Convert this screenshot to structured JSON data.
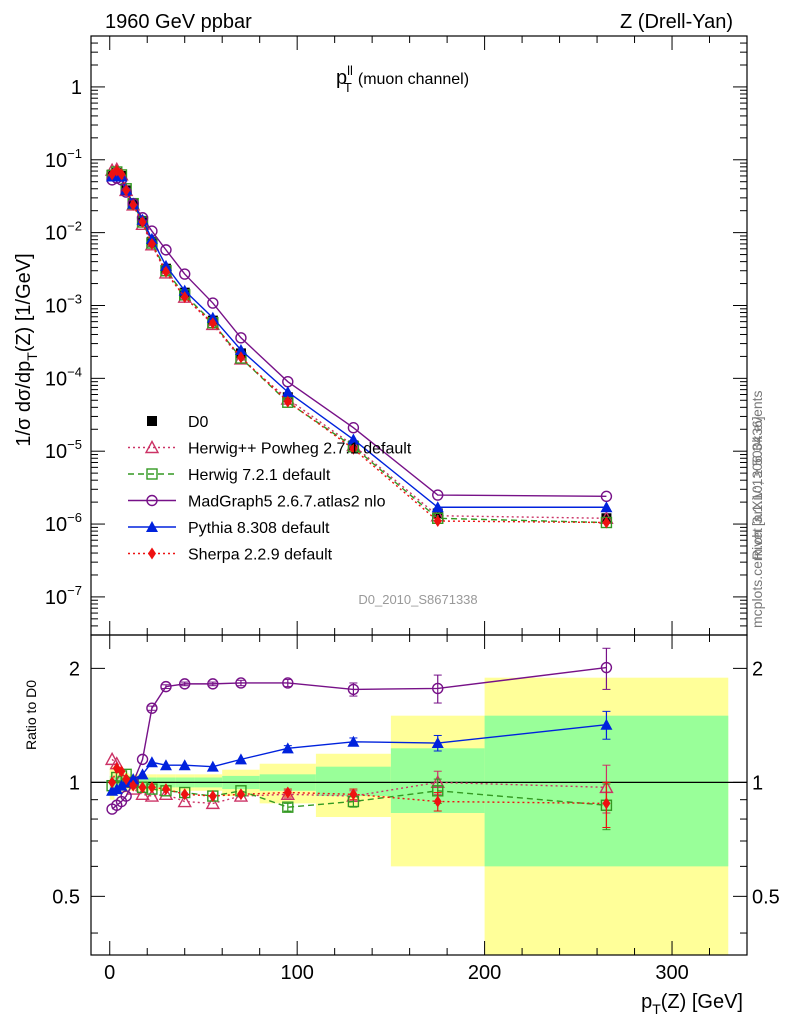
{
  "header": {
    "left": "1960 GeV ppbar",
    "right": "Z (Drell-Yan)"
  },
  "side_labels": {
    "rivet": "Rivet 3.1.10, ≥ 500k events",
    "mcplots": "mcplots.cern.ch [arXiv:1306.3436]"
  },
  "chart_data": [
    {
      "type": "line",
      "title_main": "p",
      "title_sub": "T",
      "title_sup": "ll",
      "title_tail": "(muon channel)",
      "watermark": "D0_2010_S8671338",
      "ylabel": "1/σ  dσ/dp_T(Z) [1/GeV]",
      "ylabel_parts": [
        "1/σ  dσ/dp",
        "T",
        "(Z) [1/GeV]"
      ],
      "yscale": "log",
      "xlim": [
        -10,
        340
      ],
      "ylim": [
        3e-08,
        5
      ],
      "ytick_labels": [
        {
          "v": 1,
          "base": "1",
          "exp": ""
        },
        {
          "v": 0.1,
          "base": "10",
          "exp": "−1"
        },
        {
          "v": 0.01,
          "base": "10",
          "exp": "−2"
        },
        {
          "v": 0.001,
          "base": "10",
          "exp": "−3"
        },
        {
          "v": 0.0001,
          "base": "10",
          "exp": "−4"
        },
        {
          "v": 1e-05,
          "base": "10",
          "exp": "−5"
        },
        {
          "v": 1e-06,
          "base": "10",
          "exp": "−6"
        },
        {
          "v": 1e-07,
          "base": "10",
          "exp": "−7"
        }
      ],
      "legend_position": "lower-left",
      "x": [
        1.25,
        3.75,
        6.25,
        8.75,
        12.5,
        17.5,
        22.5,
        30,
        40,
        55,
        70,
        95,
        130,
        175,
        265
      ],
      "series": [
        {
          "name": "D0",
          "color": "#000000",
          "marker": "square",
          "line": "none",
          "values": [
            0.0625,
            0.066,
            0.06,
            0.038,
            0.025,
            0.0145,
            0.0075,
            0.0032,
            0.0015,
            0.00062,
            0.00022,
            5.5e-05,
            1.2e-05,
            1.4e-06,
            1.2e-06
          ]
        },
        {
          "name": "Herwig++ Powheg 2.7.1 default",
          "color": "#cc3366",
          "marker": "triangle-open",
          "line": "dotted",
          "values": [
            0.072,
            0.074,
            0.062,
            0.038,
            0.024,
            0.013,
            0.0068,
            0.0028,
            0.0013,
            0.00055,
            0.000185,
            5.2e-05,
            1.2e-05,
            1.3e-06,
            1.2e-06
          ]
        },
        {
          "name": "Herwig 7.2.1 default",
          "color": "#339922",
          "marker": "square-open",
          "line": "dashed",
          "values": [
            0.061,
            0.068,
            0.062,
            0.04,
            0.025,
            0.014,
            0.0072,
            0.003,
            0.0014,
            0.00058,
            0.00019,
            4.7e-05,
            1.15e-05,
            1.2e-06,
            1.05e-06
          ]
        },
        {
          "name": "MadGraph5 2.6.7.atlas2 nlo",
          "color": "#771188",
          "marker": "circle-open",
          "line": "solid",
          "values": [
            0.053,
            0.056,
            0.053,
            0.036,
            0.025,
            0.016,
            0.0105,
            0.0058,
            0.0027,
            0.00108,
            0.00036,
            9e-05,
            2.1e-05,
            2.5e-06,
            2.4e-06
          ]
        },
        {
          "name": "Pythia 8.308 default",
          "color": "#0022dd",
          "marker": "triangle",
          "line": "solid",
          "values": [
            0.059,
            0.063,
            0.059,
            0.039,
            0.025,
            0.015,
            0.0082,
            0.0035,
            0.0016,
            0.00068,
            0.000245,
            6.5e-05,
            1.45e-05,
            1.7e-06,
            1.7e-06
          ]
        },
        {
          "name": "Sherpa 2.2.9 default",
          "color": "#ee1111",
          "marker": "diamond",
          "line": "dotted",
          "values": [
            0.063,
            0.071,
            0.063,
            0.038,
            0.024,
            0.014,
            0.007,
            0.0029,
            0.0013,
            0.00057,
            0.000195,
            4.8e-05,
            1.08e-05,
            1.1e-06,
            1.05e-06
          ]
        }
      ]
    },
    {
      "type": "line",
      "ylabel": "Ratio to D0",
      "xlabel": "p_T(Z) [GeV]",
      "xlabel_parts": [
        "p",
        "T",
        "(Z) [GeV]"
      ],
      "yscale": "log",
      "xlim": [
        -10,
        340
      ],
      "ylim": [
        0.35,
        2.45
      ],
      "xtick_labels": [
        "0",
        "100",
        "200",
        "300"
      ],
      "xticks": [
        0,
        100,
        200,
        300
      ],
      "ytick_labels": [
        "0.5",
        "1",
        "2"
      ],
      "yticks": [
        0.5,
        1,
        2
      ],
      "reference_line": 1,
      "bands": [
        {
          "x0": 0,
          "x1": 2.5,
          "inner": [
            0.96,
            1.04
          ],
          "outer": [
            0.9,
            1.1
          ]
        },
        {
          "x0": 2.5,
          "x1": 5,
          "inner": [
            0.97,
            1.03
          ],
          "outer": [
            0.93,
            1.07
          ]
        },
        {
          "x0": 5,
          "x1": 7.5,
          "inner": [
            0.97,
            1.03
          ],
          "outer": [
            0.94,
            1.06
          ]
        },
        {
          "x0": 7.5,
          "x1": 10,
          "inner": [
            0.97,
            1.03
          ],
          "outer": [
            0.94,
            1.06
          ]
        },
        {
          "x0": 10,
          "x1": 15,
          "inner": [
            0.97,
            1.03
          ],
          "outer": [
            0.95,
            1.05
          ]
        },
        {
          "x0": 15,
          "x1": 20,
          "inner": [
            0.97,
            1.03
          ],
          "outer": [
            0.95,
            1.05
          ]
        },
        {
          "x0": 20,
          "x1": 25,
          "inner": [
            0.97,
            1.03
          ],
          "outer": [
            0.95,
            1.05
          ]
        },
        {
          "x0": 25,
          "x1": 35,
          "inner": [
            0.97,
            1.03
          ],
          "outer": [
            0.95,
            1.05
          ]
        },
        {
          "x0": 35,
          "x1": 45,
          "inner": [
            0.97,
            1.03
          ],
          "outer": [
            0.95,
            1.05
          ]
        },
        {
          "x0": 45,
          "x1": 60,
          "inner": [
            0.97,
            1.03
          ],
          "outer": [
            0.95,
            1.05
          ]
        },
        {
          "x0": 60,
          "x1": 80,
          "inner": [
            0.96,
            1.04
          ],
          "outer": [
            0.92,
            1.08
          ]
        },
        {
          "x0": 80,
          "x1": 110,
          "inner": [
            0.95,
            1.05
          ],
          "outer": [
            0.88,
            1.12
          ]
        },
        {
          "x0": 110,
          "x1": 150,
          "inner": [
            0.92,
            1.1
          ],
          "outer": [
            0.81,
            1.19
          ]
        },
        {
          "x0": 150,
          "x1": 200,
          "inner": [
            0.83,
            1.23
          ],
          "outer": [
            0.6,
            1.5
          ]
        },
        {
          "x0": 200,
          "x1": 330,
          "inner": [
            0.6,
            1.5
          ],
          "outer": [
            0.33,
            1.89
          ]
        }
      ],
      "series": [
        {
          "name": "Herwig++ Powheg 2.7.1 default",
          "color": "#cc3366",
          "marker": "triangle-open",
          "line": "dotted",
          "values": [
            1.15,
            1.12,
            1.03,
            1.0,
            0.96,
            0.93,
            0.92,
            0.93,
            0.89,
            0.88,
            0.92,
            0.93,
            0.92,
            1.0,
            0.97
          ],
          "errors": [
            0.01,
            0.01,
            0.01,
            0.01,
            0.01,
            0.01,
            0.01,
            0.01,
            0.01,
            0.01,
            0.01,
            0.02,
            0.03,
            0.07,
            0.14
          ]
        },
        {
          "name": "Herwig 7.2.1 default",
          "color": "#339922",
          "marker": "square-open",
          "line": "dashed",
          "values": [
            0.98,
            1.03,
            1.04,
            1.05,
            1.0,
            0.97,
            0.96,
            0.95,
            0.94,
            0.92,
            0.95,
            0.86,
            0.89,
            0.95,
            0.87
          ],
          "errors": [
            0.01,
            0.01,
            0.01,
            0.01,
            0.01,
            0.01,
            0.01,
            0.01,
            0.01,
            0.01,
            0.01,
            0.02,
            0.03,
            0.07,
            0.12
          ]
        },
        {
          "name": "MadGraph5 2.6.7.atlas2 nlo",
          "color": "#771188",
          "marker": "circle-open",
          "line": "solid",
          "values": [
            0.85,
            0.87,
            0.89,
            0.92,
            1.0,
            1.15,
            1.57,
            1.79,
            1.82,
            1.82,
            1.83,
            1.83,
            1.76,
            1.77,
            2.01
          ],
          "errors": [
            0.01,
            0.01,
            0.01,
            0.01,
            0.01,
            0.01,
            0.02,
            0.02,
            0.02,
            0.02,
            0.03,
            0.04,
            0.07,
            0.15,
            0.25
          ]
        },
        {
          "name": "Pythia 8.308 default",
          "color": "#0022dd",
          "marker": "triangle",
          "line": "solid",
          "values": [
            0.95,
            0.96,
            0.98,
            1.0,
            1.02,
            1.05,
            1.13,
            1.11,
            1.11,
            1.1,
            1.15,
            1.23,
            1.28,
            1.27,
            1.42
          ],
          "errors": [
            0.01,
            0.01,
            0.01,
            0.01,
            0.01,
            0.01,
            0.01,
            0.01,
            0.01,
            0.01,
            0.01,
            0.02,
            0.03,
            0.06,
            0.12
          ]
        },
        {
          "name": "Sherpa 2.2.9 default",
          "color": "#ee1111",
          "marker": "diamond",
          "line": "dotted",
          "values": [
            1.0,
            1.09,
            1.07,
            1.02,
            0.98,
            0.97,
            0.97,
            0.96,
            0.93,
            0.92,
            0.93,
            0.94,
            0.93,
            0.89,
            0.88
          ],
          "errors": [
            0.01,
            0.01,
            0.01,
            0.01,
            0.01,
            0.01,
            0.01,
            0.01,
            0.01,
            0.01,
            0.01,
            0.02,
            0.03,
            0.05,
            0.12
          ]
        }
      ]
    }
  ]
}
